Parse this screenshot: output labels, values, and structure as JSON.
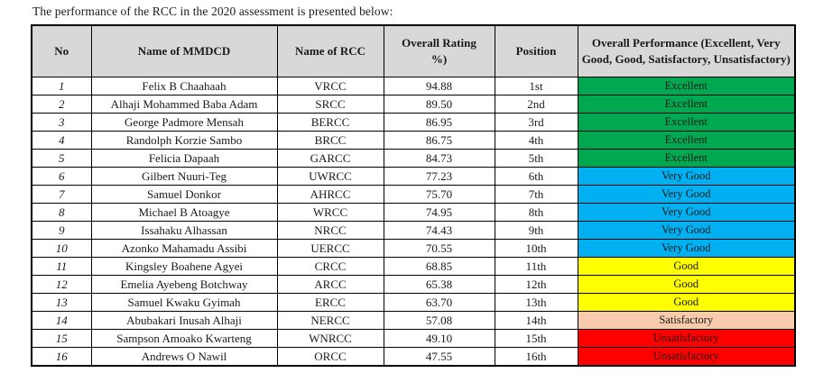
{
  "intro": "The performance of the RCC in the 2020 assessment is presented below:",
  "table": {
    "headers": {
      "no": "No",
      "name": "Name of MMDCD",
      "rcc": "Name of RCC",
      "rating": "Overall Rating\n%)",
      "position": "Position",
      "performance": "Overall Performance (Excellent, Very Good, Good, Satisfactory, Unsatisfactory)"
    },
    "performance_colors": {
      "Excellent": "#00A94F",
      "Very Good": "#00B0F0",
      "Good": "#FFFF00",
      "Satisfactory": "#F7CBAC",
      "Unsatisfactory": "#FF0000"
    },
    "header_background": "#D8D8D8",
    "rows": [
      {
        "no": "1",
        "name": "Felix B Chaahaah",
        "rcc": "VRCC",
        "rating": "94.88",
        "position": "1st",
        "performance": "Excellent"
      },
      {
        "no": "2",
        "name": "Alhaji Mohammed Baba Adam",
        "rcc": "SRCC",
        "rating": "89.50",
        "position": "2nd",
        "performance": "Excellent"
      },
      {
        "no": "3",
        "name": "George Padmore Mensah",
        "rcc": "BERCC",
        "rating": "86.95",
        "position": "3rd",
        "performance": "Excellent"
      },
      {
        "no": "4",
        "name": "Randolph Korzie Sambo",
        "rcc": "BRCC",
        "rating": "86.75",
        "position": "4th",
        "performance": "Excellent"
      },
      {
        "no": "5",
        "name": "Felicia Dapaah",
        "rcc": "GARCC",
        "rating": "84.73",
        "position": "5th",
        "performance": "Excellent"
      },
      {
        "no": "6",
        "name": "Gilbert Nuuri-Teg",
        "rcc": "UWRCC",
        "rating": "77.23",
        "position": "6th",
        "performance": "Very Good"
      },
      {
        "no": "7",
        "name": "Samuel Donkor",
        "rcc": "AHRCC",
        "rating": "75.70",
        "position": "7th",
        "performance": "Very Good"
      },
      {
        "no": "8",
        "name": "Michael B Atoagye",
        "rcc": "WRCC",
        "rating": "74.95",
        "position": "8th",
        "performance": "Very Good"
      },
      {
        "no": "9",
        "name": "Issahaku Alhassan",
        "rcc": "NRCC",
        "rating": "74.43",
        "position": "9th",
        "performance": "Very Good"
      },
      {
        "no": "10",
        "name": "Azonko Mahamadu Assibi",
        "rcc": "UERCC",
        "rating": "70.55",
        "position": "10th",
        "performance": "Very Good"
      },
      {
        "no": "11",
        "name": "Kingsley Boahene Agyei",
        "rcc": "CRCC",
        "rating": "68.85",
        "position": "11th",
        "performance": "Good"
      },
      {
        "no": "12",
        "name": "Emelia Ayebeng Botchway",
        "rcc": "ARCC",
        "rating": "65.38",
        "position": "12th",
        "performance": "Good"
      },
      {
        "no": "13",
        "name": "Samuel Kwaku Gyimah",
        "rcc": "ERCC",
        "rating": "63.70",
        "position": "13th",
        "performance": "Good"
      },
      {
        "no": "14",
        "name": "Abubakari Inusah Alhaji",
        "rcc": "NERCC",
        "rating": "57.08",
        "position": "14th",
        "performance": "Satisfactory"
      },
      {
        "no": "15",
        "name": "Sampson Amoako Kwarteng",
        "rcc": "WNRCC",
        "rating": "49.10",
        "position": "15th",
        "performance": "Unsatisfactory"
      },
      {
        "no": "16",
        "name": "Andrews O Nawil",
        "rcc": "ORCC",
        "rating": "47.55",
        "position": "16th",
        "performance": "Unsatisfactory"
      }
    ]
  }
}
